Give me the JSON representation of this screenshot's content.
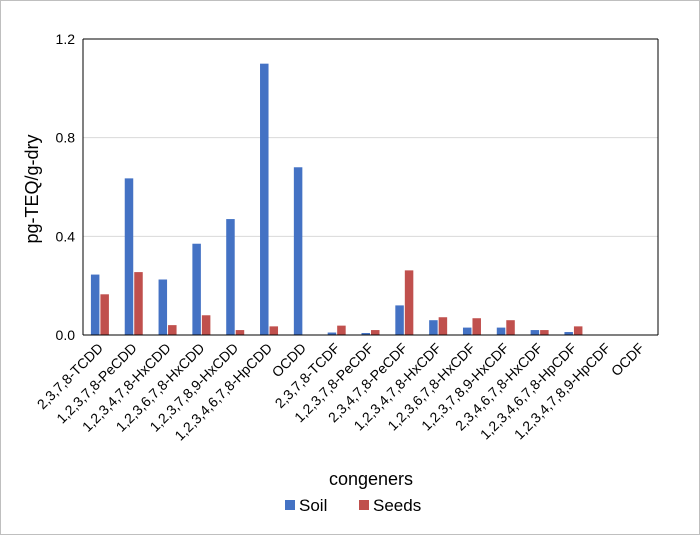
{
  "chart_data": {
    "type": "bar",
    "title": "",
    "xlabel": "congeners",
    "ylabel": "pg-TEQ/g-dry",
    "ylim": [
      0,
      1.2
    ],
    "yticks": [
      "0.0",
      "0.4",
      "0.8",
      "1.2"
    ],
    "ytick_values": [
      0,
      0.4,
      0.8,
      1.2
    ],
    "grid": true,
    "legend_position": "bottom",
    "categories": [
      "2,3,7,8-TCDD",
      "1,2,3,7,8-PeCDD",
      "1,2,3,4,7,8-HxCDD",
      "1,2,3,6,7,8-HxCDD",
      "1,2,3,7,8,9-HxCDD",
      "1,2,3,4,6,7,8-HpCDD",
      "OCDD",
      "2,3,7,8-TCDF",
      "1,2,3,7,8-PeCDF",
      "2,3,4,7,8-PeCDF",
      "1,2,3,4,7,8-HxCDF",
      "1,2,3,6,7,8-HxCDF",
      "1,2,3,7,8,9-HxCDF",
      "2,3,4,6,7,8-HxCDF",
      "1,2,3,4,6,7,8-HpCDF",
      "1,2,3,4,7,8,9-HpCDF",
      "OCDF"
    ],
    "series": [
      {
        "name": "Soil",
        "color": "#4472c4",
        "values": [
          0.245,
          0.635,
          0.225,
          0.37,
          0.47,
          1.1,
          0.68,
          0.01,
          0.008,
          0.12,
          0.06,
          0.03,
          0.03,
          0.02,
          0.012,
          0.001,
          0.001
        ]
      },
      {
        "name": "Seeds",
        "color": "#c0504d",
        "values": [
          0.165,
          0.255,
          0.04,
          0.08,
          0.02,
          0.035,
          0.0,
          0.038,
          0.02,
          0.262,
          0.072,
          0.068,
          0.06,
          0.02,
          0.035,
          0.002,
          0.001
        ]
      }
    ]
  }
}
